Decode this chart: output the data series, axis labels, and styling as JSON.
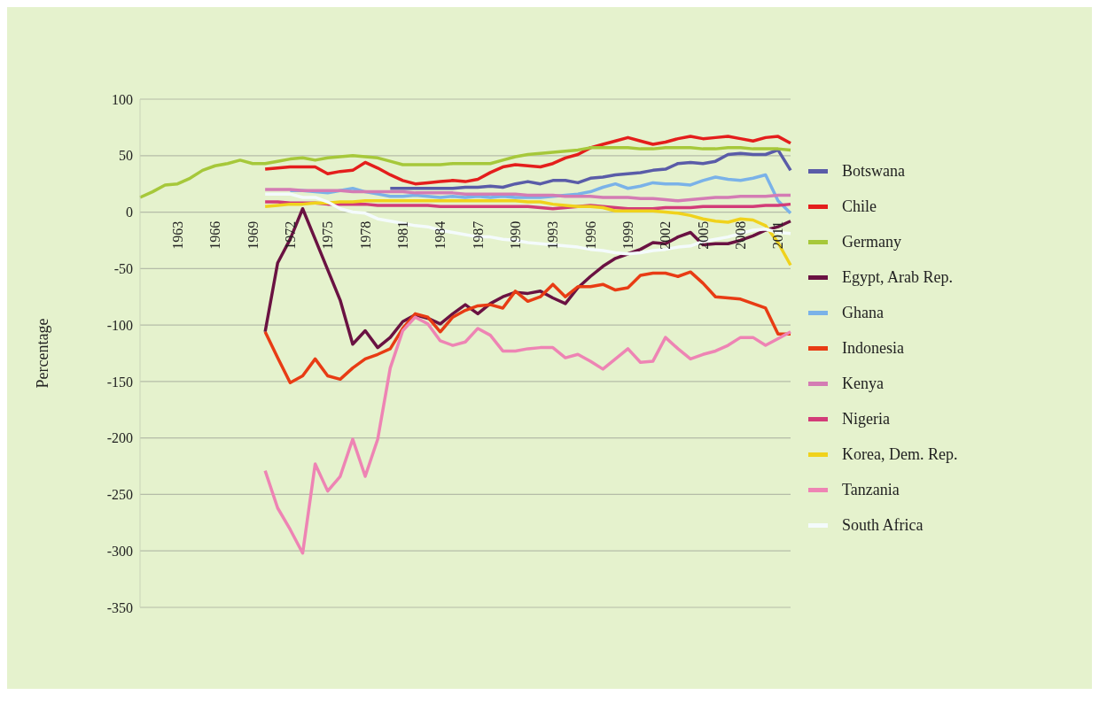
{
  "chart_data": {
    "type": "line",
    "ylabel": "Percentage",
    "categories": [
      null,
      null,
      null,
      "1963",
      null,
      null,
      "1966",
      null,
      null,
      "1969",
      null,
      null,
      "1972",
      null,
      null,
      "1975",
      null,
      null,
      "1978",
      null,
      null,
      "1981",
      null,
      null,
      "1984",
      null,
      null,
      "1987",
      null,
      null,
      "1990",
      null,
      null,
      "1993",
      null,
      null,
      "1996",
      null,
      null,
      "1999",
      null,
      null,
      "2002",
      null,
      null,
      "2005",
      null,
      null,
      "2008",
      null,
      null,
      "2011",
      null
    ],
    "ylim": [
      -350,
      100
    ],
    "yticks": [
      -350,
      -300,
      -250,
      -200,
      -150,
      -100,
      -50,
      0,
      50,
      100
    ],
    "grid": "y",
    "legend": "right",
    "marker": "none",
    "series": [
      {
        "name": "Botswana",
        "color": "#5a5ca8",
        "values": [
          null,
          null,
          null,
          null,
          null,
          null,
          null,
          null,
          null,
          null,
          null,
          null,
          null,
          null,
          null,
          null,
          null,
          null,
          null,
          null,
          21,
          21,
          21,
          21,
          21,
          21,
          22,
          22,
          23,
          22,
          25,
          27,
          25,
          28,
          28,
          26,
          30,
          31,
          33,
          34,
          35,
          37,
          38,
          43,
          44,
          43,
          45,
          51,
          52,
          51,
          51,
          55,
          37
        ]
      },
      {
        "name": "Chile",
        "color": "#e41e1c",
        "values": [
          null,
          null,
          null,
          null,
          null,
          null,
          null,
          null,
          null,
          null,
          38,
          39,
          40,
          40,
          40,
          34,
          36,
          37,
          44,
          39,
          33,
          28,
          25,
          26,
          27,
          28,
          27,
          29,
          35,
          40,
          42,
          41,
          40,
          43,
          48,
          51,
          57,
          60,
          63,
          66,
          63,
          60,
          62,
          65,
          67,
          65,
          66,
          67,
          65,
          63,
          66,
          67,
          61
        ]
      },
      {
        "name": "Germany",
        "color": "#a6c83a",
        "values": [
          13,
          18,
          24,
          25,
          30,
          37,
          41,
          43,
          46,
          43,
          43,
          45,
          47,
          48,
          46,
          48,
          49,
          50,
          49,
          48,
          45,
          42,
          42,
          42,
          42,
          43,
          43,
          43,
          43,
          46,
          49,
          51,
          52,
          53,
          54,
          55,
          57,
          57,
          57,
          57,
          56,
          56,
          57,
          57,
          57,
          56,
          56,
          57,
          57,
          56,
          56,
          56,
          55
        ]
      },
      {
        "name": "Egypt, Arab Rep.",
        "color": "#6a1242",
        "values": [
          null,
          null,
          null,
          null,
          null,
          null,
          null,
          null,
          null,
          null,
          -106,
          -45,
          -24,
          3,
          -24,
          -51,
          -78,
          -117,
          -105,
          -120,
          -111,
          -97,
          -91,
          -94,
          -99,
          -90,
          -82,
          -90,
          -81,
          -75,
          -71,
          -72,
          -70,
          -76,
          -81,
          -67,
          -57,
          -48,
          -41,
          -37,
          -33,
          -27,
          -28,
          -22,
          -18,
          -29,
          -28,
          -28,
          -25,
          -21,
          -16,
          -13,
          -8
        ]
      },
      {
        "name": "Ghana",
        "color": "#7ab2e8",
        "values": [
          null,
          null,
          null,
          null,
          null,
          null,
          null,
          null,
          null,
          null,
          null,
          null,
          19,
          19,
          18,
          17,
          19,
          21,
          18,
          16,
          14,
          14,
          15,
          14,
          13,
          14,
          13,
          14,
          13,
          14,
          13,
          13,
          13,
          14,
          15,
          16,
          18,
          22,
          25,
          21,
          23,
          26,
          25,
          25,
          24,
          28,
          31,
          29,
          28,
          30,
          33,
          10,
          -1
        ]
      },
      {
        "name": "Indonesia",
        "color": "#e83c14",
        "values": [
          null,
          null,
          null,
          null,
          null,
          null,
          null,
          null,
          null,
          null,
          -106,
          -129,
          -151,
          -145,
          -130,
          -145,
          -148,
          -138,
          -130,
          -126,
          -121,
          -103,
          -90,
          -93,
          -106,
          -93,
          -87,
          -83,
          -82,
          -85,
          -70,
          -79,
          -75,
          -64,
          -75,
          -66,
          -66,
          -64,
          -69,
          -67,
          -56,
          -54,
          -54,
          -57,
          -53,
          -63,
          -75,
          -76,
          -77,
          -81,
          -85,
          -108,
          -108
        ]
      },
      {
        "name": "Kenya",
        "color": "#d47cb4",
        "values": [
          null,
          null,
          null,
          null,
          null,
          null,
          null,
          null,
          null,
          null,
          20,
          20,
          20,
          19,
          19,
          19,
          19,
          18,
          18,
          18,
          18,
          18,
          17,
          17,
          17,
          17,
          16,
          16,
          16,
          16,
          16,
          15,
          15,
          15,
          14,
          14,
          14,
          13,
          13,
          13,
          12,
          12,
          11,
          10,
          11,
          12,
          13,
          13,
          14,
          14,
          14,
          15,
          15
        ]
      },
      {
        "name": "Nigeria",
        "color": "#d23c78",
        "values": [
          null,
          null,
          null,
          null,
          null,
          null,
          null,
          null,
          null,
          null,
          9,
          9,
          8,
          8,
          8,
          7,
          7,
          7,
          7,
          6,
          6,
          6,
          6,
          6,
          5,
          5,
          5,
          5,
          5,
          5,
          5,
          5,
          4,
          3,
          4,
          5,
          6,
          5,
          4,
          3,
          3,
          3,
          4,
          4,
          4,
          5,
          5,
          5,
          5,
          5,
          6,
          6,
          7
        ]
      },
      {
        "name": "Korea, Dem. Rep.",
        "color": "#f0d21c",
        "values": [
          null,
          null,
          null,
          null,
          null,
          null,
          null,
          null,
          null,
          null,
          5,
          6,
          7,
          7,
          8,
          8,
          9,
          9,
          10,
          10,
          10,
          10,
          10,
          10,
          10,
          10,
          10,
          10,
          10,
          10,
          10,
          9,
          9,
          7,
          6,
          5,
          5,
          4,
          1,
          1,
          1,
          1,
          0,
          -1,
          -3,
          -6,
          -8,
          -9,
          -6,
          -7,
          -12,
          -27,
          -47
        ]
      },
      {
        "name": "Tanzania",
        "color": "#ee84b4",
        "values": [
          null,
          null,
          null,
          null,
          null,
          null,
          null,
          null,
          null,
          null,
          -229,
          -262,
          -281,
          -302,
          -223,
          -247,
          -234,
          -201,
          -234,
          -201,
          -138,
          -105,
          -93,
          -99,
          -114,
          -118,
          -115,
          -103,
          -109,
          -123,
          -123,
          -121,
          -120,
          -120,
          -129,
          -126,
          -132,
          -139,
          -130,
          -121,
          -133,
          -132,
          -111,
          -121,
          -130,
          -126,
          -123,
          -118,
          -111,
          -111,
          -118,
          -112,
          -106
        ]
      },
      {
        "name": "South Africa",
        "color": "#f4fbfc",
        "values": [
          null,
          null,
          null,
          null,
          null,
          null,
          null,
          null,
          null,
          null,
          16,
          16,
          16,
          13,
          13,
          9,
          3,
          0,
          -1,
          -6,
          -8,
          -10,
          -12,
          -13,
          -16,
          -18,
          -20,
          -22,
          -22,
          -24,
          -25,
          -27,
          -28,
          -29,
          -30,
          -31,
          -33,
          -34,
          -36,
          -37,
          -36,
          -34,
          -33,
          -31,
          -30,
          -26,
          -24,
          -22,
          -19,
          -16,
          -15,
          -18,
          -19
        ]
      }
    ]
  }
}
